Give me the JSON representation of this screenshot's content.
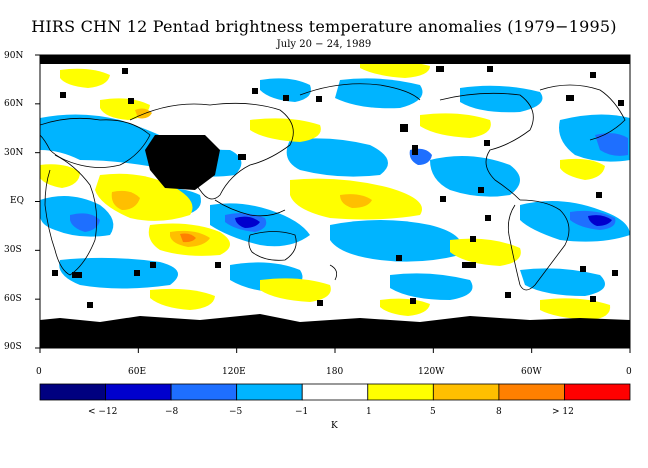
{
  "title": "HIRS CHN 12 Pentad brightness temperature anomalies (1979−1995)",
  "subtitle": "July 20 − 24, 1989",
  "lat_labels": [
    "90N",
    "60N",
    "30N",
    "EQ",
    "30S",
    "60S",
    "90S"
  ],
  "lon_labels": [
    "0",
    "60E",
    "120E",
    "180",
    "120W",
    "60W",
    "0"
  ],
  "colorbar": {
    "colors": [
      "#000080",
      "#0000cd",
      "#1e6fff",
      "#00b4ff",
      "#ffffff",
      "#ffff00",
      "#ffbf00",
      "#ff8000",
      "#ff0000"
    ],
    "labels": [
      "< −12",
      "−8",
      "−5",
      "−1",
      "1",
      "5",
      "8",
      "> 12"
    ],
    "unit": "K"
  },
  "colors": {
    "missing": "#000000",
    "coast": "#000000"
  }
}
